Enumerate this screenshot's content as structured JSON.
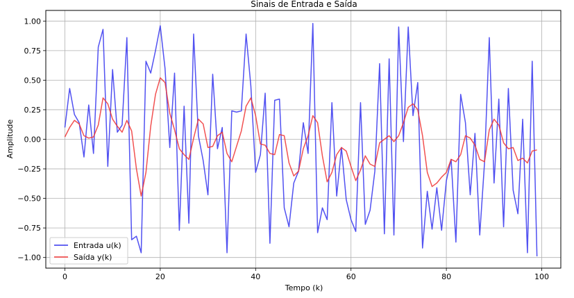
{
  "chart_data": {
    "type": "line",
    "title": "Sinais de Entrada e Saída",
    "xlabel": "Tempo (k)",
    "ylabel": "Amplitude",
    "xlim": [
      -4,
      104
    ],
    "ylim": [
      -1.09,
      1.09
    ],
    "xticks": [
      0,
      20,
      40,
      60,
      80,
      100
    ],
    "xtick_labels": [
      "0",
      "20",
      "40",
      "60",
      "80",
      "100"
    ],
    "yticks": [
      -1.0,
      -0.75,
      -0.5,
      -0.25,
      0.0,
      0.25,
      0.5,
      0.75,
      1.0
    ],
    "ytick_labels": [
      "−1.00",
      "−0.75",
      "−0.50",
      "−0.25",
      "0.00",
      "0.25",
      "0.50",
      "0.75",
      "1.00"
    ],
    "grid": true,
    "legend_position": "lower-left",
    "x": [
      0,
      1,
      2,
      3,
      4,
      5,
      6,
      7,
      8,
      9,
      10,
      11,
      12,
      13,
      14,
      15,
      16,
      17,
      18,
      19,
      20,
      21,
      22,
      23,
      24,
      25,
      26,
      27,
      28,
      29,
      30,
      31,
      32,
      33,
      34,
      35,
      36,
      37,
      38,
      39,
      40,
      41,
      42,
      43,
      44,
      45,
      46,
      47,
      48,
      49,
      50,
      51,
      52,
      53,
      54,
      55,
      56,
      57,
      58,
      59,
      60,
      61,
      62,
      63,
      64,
      65,
      66,
      67,
      68,
      69,
      70,
      71,
      72,
      73,
      74,
      75,
      76,
      77,
      78,
      79,
      80,
      81,
      82,
      83,
      84,
      85,
      86,
      87,
      88,
      89,
      90,
      91,
      92,
      93,
      94,
      95,
      96,
      97,
      98,
      99
    ],
    "series": [
      {
        "name": "Entrada u(k)",
        "color": "#3333ee",
        "values": [
          0.1,
          0.43,
          0.21,
          0.14,
          -0.15,
          0.29,
          -0.12,
          0.78,
          0.93,
          -0.23,
          0.59,
          0.06,
          0.12,
          0.86,
          -0.85,
          -0.82,
          -0.96,
          0.66,
          0.56,
          0.75,
          0.96,
          0.6,
          -0.07,
          0.56,
          -0.77,
          0.28,
          -0.71,
          0.89,
          0.03,
          -0.18,
          -0.47,
          0.55,
          -0.08,
          0.1,
          -0.96,
          0.24,
          0.23,
          0.24,
          0.89,
          0.45,
          -0.28,
          -0.13,
          0.39,
          -0.88,
          0.33,
          0.34,
          -0.58,
          -0.74,
          -0.37,
          -0.27,
          0.14,
          -0.12,
          0.98,
          -0.79,
          -0.58,
          -0.68,
          0.31,
          -0.48,
          -0.07,
          -0.51,
          -0.68,
          -0.78,
          0.31,
          -0.72,
          -0.6,
          -0.27,
          0.64,
          -0.8,
          0.68,
          -0.81,
          0.95,
          -0.02,
          0.95,
          0.2,
          0.48,
          -0.92,
          -0.44,
          -0.76,
          -0.41,
          -0.77,
          -0.35,
          -0.17,
          -0.87,
          0.38,
          0.14,
          -0.47,
          0.05,
          -0.81,
          -0.2,
          0.86,
          -0.37,
          0.34,
          -0.74,
          0.43,
          -0.43,
          -0.63,
          0.17,
          -0.96,
          0.66,
          -0.99
        ]
      },
      {
        "name": "Saída y(k)",
        "color": "#ee3333",
        "values": [
          0.02,
          0.1,
          0.16,
          0.13,
          0.03,
          0.01,
          0.02,
          0.12,
          0.35,
          0.3,
          0.17,
          0.11,
          0.06,
          0.16,
          0.07,
          -0.25,
          -0.48,
          -0.28,
          0.11,
          0.38,
          0.52,
          0.48,
          0.22,
          0.08,
          -0.08,
          -0.13,
          -0.17,
          0.01,
          0.17,
          0.13,
          -0.07,
          -0.06,
          0.03,
          0.06,
          -0.12,
          -0.19,
          -0.06,
          0.07,
          0.28,
          0.35,
          0.2,
          -0.04,
          -0.05,
          -0.12,
          -0.13,
          0.04,
          0.03,
          -0.2,
          -0.31,
          -0.27,
          -0.08,
          0.03,
          0.2,
          0.14,
          -0.14,
          -0.36,
          -0.28,
          -0.13,
          -0.07,
          -0.1,
          -0.23,
          -0.35,
          -0.26,
          -0.14,
          -0.21,
          -0.23,
          -0.03,
          0.0,
          0.03,
          -0.02,
          0.03,
          0.14,
          0.27,
          0.3,
          0.25,
          0.03,
          -0.28,
          -0.4,
          -0.37,
          -0.32,
          -0.28,
          -0.17,
          -0.19,
          -0.13,
          0.03,
          0.01,
          -0.05,
          -0.17,
          -0.19,
          0.08,
          0.17,
          0.12,
          -0.03,
          -0.08,
          -0.07,
          -0.18,
          -0.16,
          -0.2,
          -0.1,
          -0.09
        ]
      }
    ]
  }
}
